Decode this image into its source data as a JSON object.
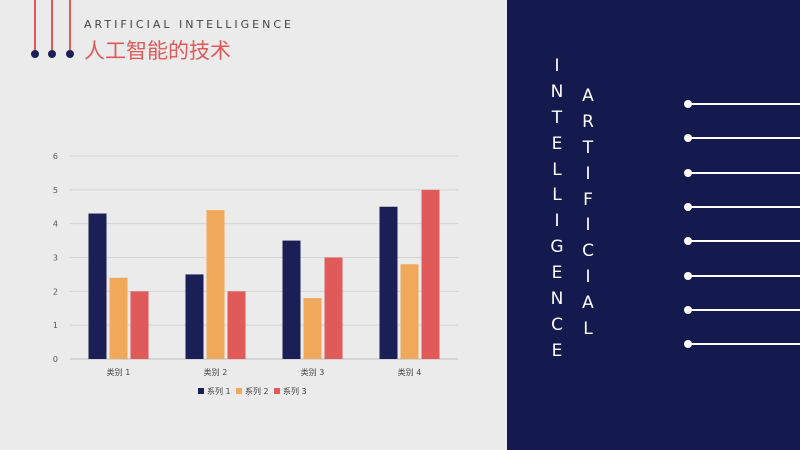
{
  "header": {
    "subtitle": "ARTIFICIAL INTELLIGENCE",
    "title": "人工智能的技术"
  },
  "side_text": {
    "col1": [
      "I",
      "N",
      "T",
      "E",
      "L",
      "L",
      "I",
      "G",
      "E",
      "N",
      "C",
      "E"
    ],
    "col2": [
      "A",
      "R",
      "T",
      "I",
      "F",
      "I",
      "C",
      "I",
      "A",
      "L"
    ]
  },
  "colors": {
    "background": "#ebebeb",
    "panel": "#141a4e",
    "accent": "#e05a5a",
    "series": [
      "#1b1f55",
      "#f0a95a",
      "#e05a5a"
    ]
  },
  "chart_data": {
    "type": "bar",
    "categories": [
      "类别 1",
      "类别 2",
      "类别 3",
      "类别 4"
    ],
    "series": [
      {
        "name": "系列 1",
        "values": [
          4.3,
          2.5,
          3.5,
          4.5
        ]
      },
      {
        "name": "系列 2",
        "values": [
          2.4,
          4.4,
          1.8,
          2.8
        ]
      },
      {
        "name": "系列 3",
        "values": [
          2,
          2,
          3,
          5
        ]
      }
    ],
    "yticks": [
      "0",
      "1",
      "2",
      "3",
      "4",
      "5",
      "6"
    ],
    "ylim": [
      0,
      6
    ],
    "legend": "bottom",
    "grid": true
  }
}
